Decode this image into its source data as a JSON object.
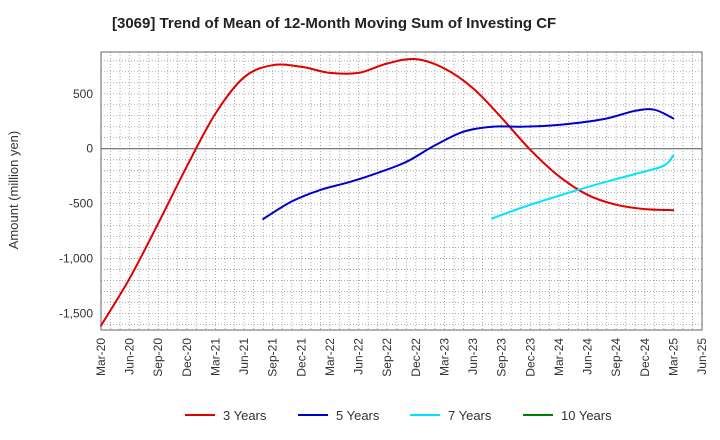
{
  "chart_data": {
    "type": "line",
    "title": "[3069]  Trend of Mean of 12-Month Moving Sum of Investing CF",
    "ylabel": "Amount (million yen)",
    "xlabel": "",
    "ylim": [
      -1650,
      880
    ],
    "yticks": [
      500,
      0,
      -500,
      -1000,
      -1500
    ],
    "ytick_labels": [
      "500",
      "0",
      "-500",
      "-1,000",
      "-1,500"
    ],
    "x_start": "Mar-20",
    "x_end": "Jun-25",
    "xtick_labels": [
      "Mar-20",
      "Jun-20",
      "Sep-20",
      "Dec-20",
      "Mar-21",
      "Jun-21",
      "Sep-21",
      "Dec-21",
      "Mar-22",
      "Jun-22",
      "Sep-22",
      "Dec-22",
      "Mar-23",
      "Jun-23",
      "Sep-23",
      "Dec-23",
      "Mar-24",
      "Jun-24",
      "Sep-24",
      "Dec-24",
      "Mar-25",
      "Jun-25"
    ],
    "grid": true,
    "legend_position": "bottom",
    "series": [
      {
        "name": "3 Years",
        "color": "#e00000",
        "points": [
          [
            "Mar-20",
            -1610
          ],
          [
            "Jun-20",
            -1180
          ],
          [
            "Sep-20",
            -680
          ],
          [
            "Dec-20",
            -160
          ],
          [
            "Mar-21",
            320
          ],
          [
            "Jun-21",
            650
          ],
          [
            "Sep-21",
            760
          ],
          [
            "Dec-21",
            745
          ],
          [
            "Mar-22",
            690
          ],
          [
            "Jun-22",
            690
          ],
          [
            "Sep-22",
            775
          ],
          [
            "Dec-22",
            815
          ],
          [
            "Mar-23",
            730
          ],
          [
            "Jun-23",
            550
          ],
          [
            "Sep-23",
            280
          ],
          [
            "Dec-23",
            -10
          ],
          [
            "Mar-24",
            -250
          ],
          [
            "Jun-24",
            -420
          ],
          [
            "Sep-24",
            -510
          ],
          [
            "Dec-24",
            -550
          ],
          [
            "Mar-25",
            -560
          ]
        ]
      },
      {
        "name": "5 Years",
        "color": "#0000cc",
        "points": [
          [
            "Aug-21",
            -640
          ],
          [
            "Nov-21",
            -480
          ],
          [
            "Feb-22",
            -375
          ],
          [
            "May-22",
            -305
          ],
          [
            "Aug-22",
            -220
          ],
          [
            "Nov-22",
            -120
          ],
          [
            "Feb-23",
            30
          ],
          [
            "May-23",
            155
          ],
          [
            "Aug-23",
            200
          ],
          [
            "Nov-23",
            200
          ],
          [
            "Feb-24",
            210
          ],
          [
            "May-24",
            235
          ],
          [
            "Aug-24",
            275
          ],
          [
            "Nov-24",
            345
          ],
          [
            "Jan-25",
            355
          ],
          [
            "Mar-25",
            275
          ]
        ]
      },
      {
        "name": "7 Years",
        "color": "#00e5ff",
        "points": [
          [
            "Aug-23",
            -635
          ],
          [
            "Nov-23",
            -540
          ],
          [
            "Feb-24",
            -455
          ],
          [
            "May-24",
            -375
          ],
          [
            "Aug-24",
            -300
          ],
          [
            "Nov-24",
            -230
          ],
          [
            "Feb-25",
            -155
          ],
          [
            "Mar-25",
            -60
          ]
        ]
      },
      {
        "name": "10 Years",
        "color": "#008000",
        "points": []
      }
    ]
  }
}
